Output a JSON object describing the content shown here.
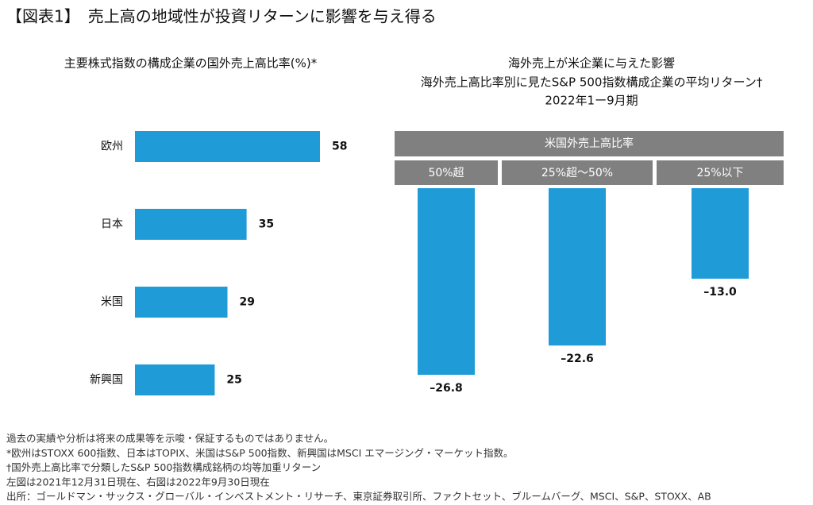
{
  "title": "【図表1】　売上高の地域性が投資リターンに影響を与え得る",
  "chart_data": [
    {
      "type": "barh",
      "title": "主要株式指数の構成企業の国外売上高比率(%)*",
      "categories": [
        "欧州",
        "日本",
        "米国",
        "新興国"
      ],
      "values": [
        58,
        35,
        29,
        25
      ],
      "color": "#1f9bd7"
    },
    {
      "type": "bar",
      "title": "海外売上が米企業に与えた影響",
      "subtitle": [
        "海外売上高比率別に見たS&P 500指数構成企業の平均リターン†",
        "2022年1ー9月期"
      ],
      "category_header": "米国外売上高比率",
      "categories": [
        "50%超",
        "25%超～50%",
        "25%以下"
      ],
      "values": [
        -26.8,
        -22.6,
        -13.0
      ],
      "value_labels": [
        "–26.8",
        "–22.6",
        "–13.0"
      ],
      "color": "#1f9bd7"
    }
  ],
  "notes": [
    "過去の実績や分析は将来の成果等を示唆・保証するものではありません。",
    "*欧州はSTOXX 600指数、日本はTOPIX、米国はS&P 500指数、新興国はMSCI エマージング・マーケット指数。",
    "†国外売上高比率で分類したS&P 500指数構成銘柄の均等加重リターン",
    "左図は2021年12月31日現在、右図は2022年9月30日現在",
    "出所：ゴールドマン・サックス・グローバル・インベストメント・リサーチ、東京証券取引所、ファクトセット、ブルームバーグ、MSCI、S&P、STOXX、AB"
  ]
}
